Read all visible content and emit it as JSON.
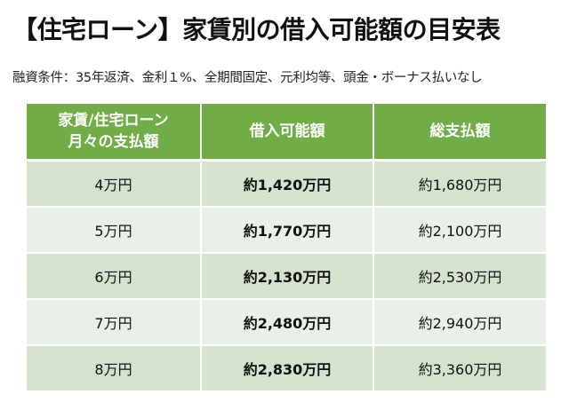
{
  "title": "【住宅ローン】家賃別の借入可能額の目安表",
  "subtitle": "融資条件：35年返済、金利１%、全期間固定、元利均等、頭金・ボーナス払いなし",
  "table": {
    "headers": {
      "col1_line1": "家賃/住宅ローン",
      "col1_line2": "月々の支払額",
      "col2": "借入可能額",
      "col3": "総支払額"
    },
    "rows": [
      {
        "payment": "4万円",
        "borrowable": "約1,420万円",
        "total": "約1,680万円"
      },
      {
        "payment": "5万円",
        "borrowable": "約1,770万円",
        "total": "約2,100万円"
      },
      {
        "payment": "6万円",
        "borrowable": "約2,130万円",
        "total": "約2,530万円"
      },
      {
        "payment": "7万円",
        "borrowable": "約2,480万円",
        "total": "約2,940万円"
      },
      {
        "payment": "8万円",
        "borrowable": "約2,830万円",
        "total": "約3,360万円"
      }
    ]
  },
  "colors": {
    "header_bg": "#70ad47",
    "row_dark": "#d5e2cd",
    "row_light": "#eaf0e7"
  }
}
